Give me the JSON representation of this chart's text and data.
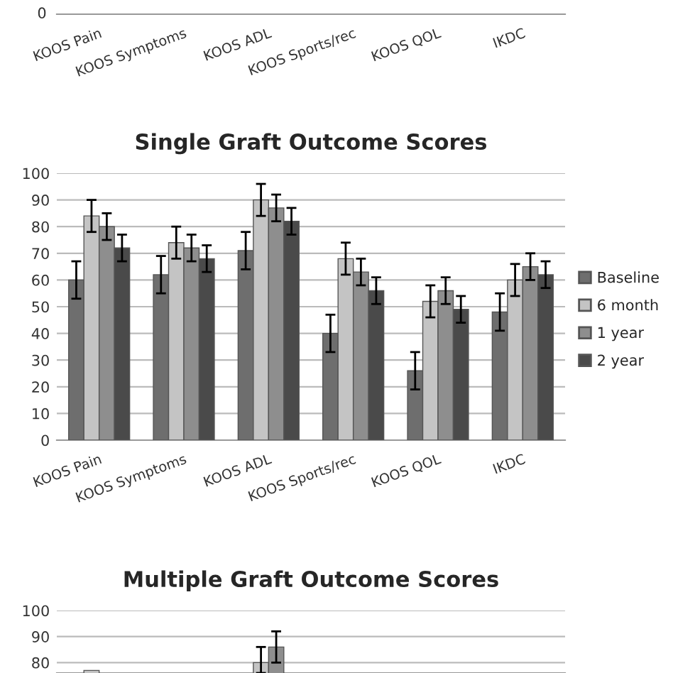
{
  "chart_data": [
    {
      "type": "other",
      "categories": [
        "KOOS Pain",
        "KOOS Symptoms",
        "KOOS ADL",
        "KOOS Sports/rec",
        "KOOS QOL",
        "IKDC"
      ],
      "annotations": [
        "0"
      ],
      "legend": false
    },
    {
      "type": "bar",
      "title": "Single Graft Outcome Scores",
      "categories": [
        "KOOS Pain",
        "KOOS Symptoms",
        "KOOS ADL",
        "KOOS Sports/rec",
        "KOOS QOL",
        "IKDC"
      ],
      "ylim": [
        0,
        100
      ],
      "yticks": [
        0,
        10,
        20,
        30,
        40,
        50,
        60,
        70,
        80,
        90,
        100
      ],
      "grid": "y",
      "legend": "right",
      "series": [
        {
          "name": "Baseline",
          "color": "#6e6e6e",
          "values": [
            60,
            62,
            71,
            40,
            26,
            48
          ],
          "errors": [
            7,
            7,
            7,
            7,
            7,
            7
          ]
        },
        {
          "name": "6 month",
          "color": "#c4c4c4",
          "values": [
            84,
            74,
            90,
            68,
            52,
            60
          ],
          "errors": [
            6,
            6,
            6,
            6,
            6,
            6
          ]
        },
        {
          "name": "1 year",
          "color": "#8e8e8e",
          "values": [
            80,
            72,
            87,
            63,
            56,
            65
          ],
          "errors": [
            5,
            5,
            5,
            5,
            5,
            5
          ]
        },
        {
          "name": "2 year",
          "color": "#4a4a4a",
          "values": [
            72,
            68,
            82,
            56,
            49,
            62
          ],
          "errors": [
            5,
            5,
            5,
            5,
            5,
            5
          ]
        }
      ]
    },
    {
      "type": "bar",
      "title": "Multiple Graft Outcome Scores",
      "categories": [
        null,
        null,
        null,
        null,
        null,
        null
      ],
      "ylim": [
        76,
        100
      ],
      "yticks": [
        80,
        90,
        100
      ],
      "grid": "y",
      "legend": false,
      "tick_labels": "y",
      "series": [
        {
          "values": [
            null,
            null,
            null,
            null,
            null,
            null
          ]
        },
        {
          "color": "#c4c4c4",
          "values": [
            77,
            null,
            80,
            null,
            null,
            null
          ],
          "errors": [
            null,
            null,
            [
              76,
              86
            ],
            null,
            null,
            null
          ]
        },
        {
          "color": "#8e8e8e",
          "values": [
            null,
            null,
            86,
            null,
            null,
            null
          ],
          "errors": [
            null,
            null,
            [
              80,
              92
            ],
            null,
            null,
            null
          ]
        },
        {
          "values": [
            null,
            null,
            null,
            null,
            null,
            null
          ]
        }
      ]
    }
  ]
}
